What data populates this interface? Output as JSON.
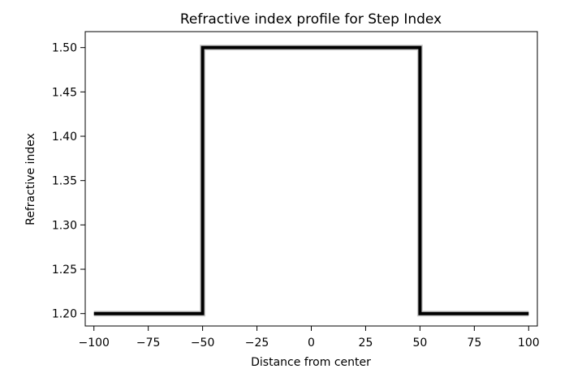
{
  "chart_data": {
    "type": "line",
    "title": "Refractive index profile for Step Index",
    "xlabel": "Distance from center",
    "ylabel": "Refractive index",
    "xlim": [
      -104,
      104
    ],
    "ylim": [
      1.186,
      1.518
    ],
    "x_ticks": [
      -100,
      -75,
      -50,
      -25,
      0,
      25,
      50,
      75,
      100
    ],
    "x_tick_labels": [
      "−100",
      "−75",
      "−50",
      "−25",
      "0",
      "25",
      "50",
      "75",
      "100"
    ],
    "y_ticks": [
      1.2,
      1.25,
      1.3,
      1.35,
      1.4,
      1.45,
      1.5
    ],
    "y_tick_labels": [
      "1.20",
      "1.25",
      "1.30",
      "1.35",
      "1.40",
      "1.45",
      "1.50"
    ],
    "grid": false,
    "series": [
      {
        "color": "#000000",
        "x": [
          -100,
          -50,
          -50,
          50,
          50,
          100
        ],
        "y": [
          1.2,
          1.2,
          1.5,
          1.5,
          1.2,
          1.2
        ]
      }
    ]
  }
}
